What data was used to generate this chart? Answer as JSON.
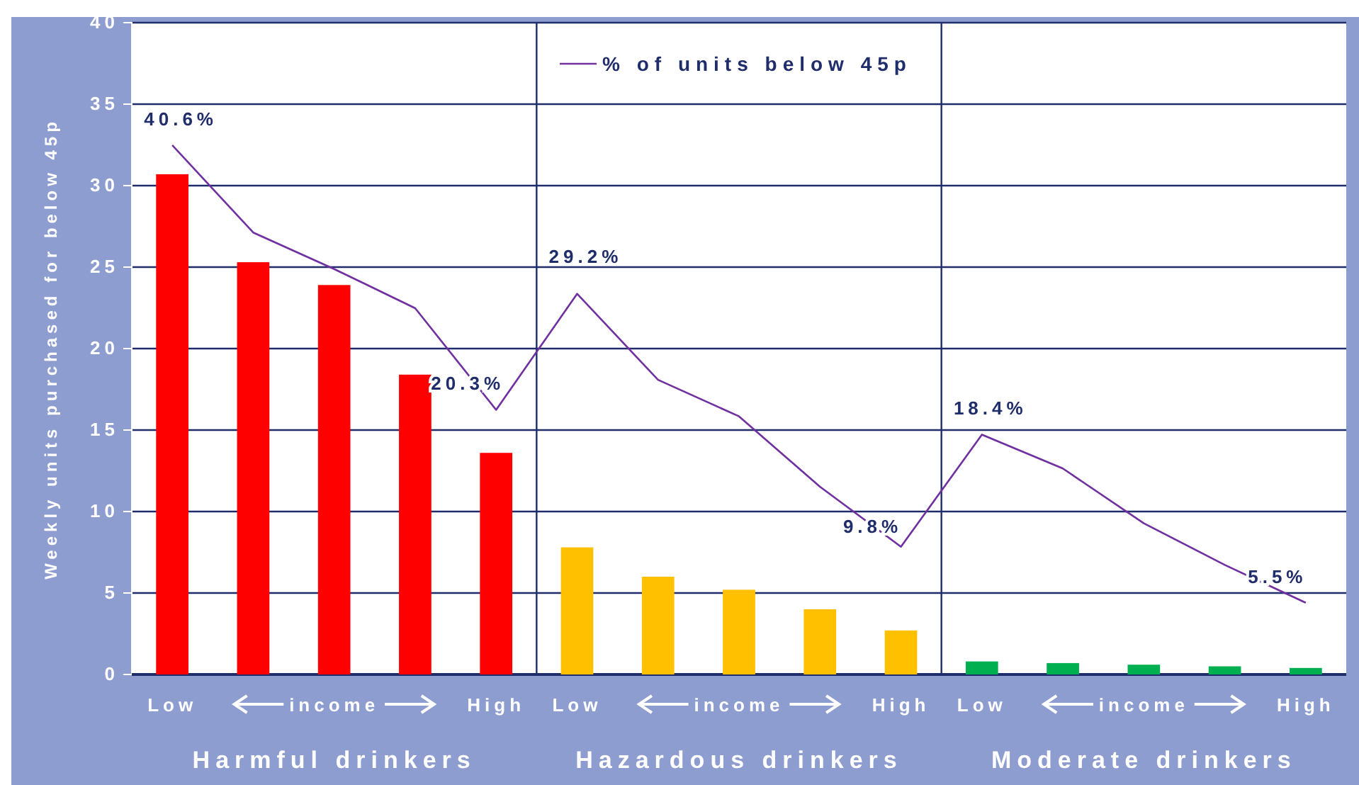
{
  "chart_data": {
    "type": "bar",
    "ylabel": "Weekly units purchased for below 45p",
    "categories": [
      "Low",
      null,
      "income",
      null,
      "High",
      "Low",
      null,
      "income",
      null,
      "High",
      "Low",
      null,
      "income",
      null,
      "High"
    ],
    "series": [
      {
        "colors": [
          "#ff0000",
          "#ff0000",
          "#ff0000",
          "#ff0000",
          "#ff0000",
          "#ffc000",
          "#ffc000",
          "#ffc000",
          "#ffc000",
          "#ffc000",
          "#00b050",
          "#00b050",
          "#00b050",
          "#00b050",
          "#00b050"
        ],
        "values": [
          30.7,
          25.3,
          23.9,
          18.4,
          13.6,
          7.8,
          6.0,
          5.2,
          4.0,
          2.7,
          0.8,
          0.7,
          0.6,
          0.5,
          0.4
        ]
      },
      {
        "type": "line",
        "name": "% of units below 45p",
        "color": "#7030a0",
        "axis": "y2",
        "values": [
          40.6,
          33.9,
          31.1,
          28.1,
          20.3,
          29.2,
          22.6,
          19.8,
          14.4,
          9.8,
          18.4,
          15.8,
          11.6,
          8.4,
          5.5
        ],
        "value_labels": [
          "40.6%",
          null,
          null,
          null,
          "20.3%",
          "29.2%",
          null,
          null,
          null,
          "9.8%",
          "18.4%",
          null,
          null,
          null,
          "5.5%"
        ]
      }
    ],
    "ylim": [
      0,
      40
    ],
    "yticks": [
      0,
      5,
      10,
      15,
      20,
      25,
      30,
      35,
      40
    ],
    "y2lim": [
      0,
      50
    ],
    "tick_labels": "xy",
    "grid": "y",
    "legend": "top",
    "marker": "none",
    "annotations": [
      "Harmful drinkers",
      "Hazardous drinkers",
      "Moderate drinkers"
    ]
  }
}
